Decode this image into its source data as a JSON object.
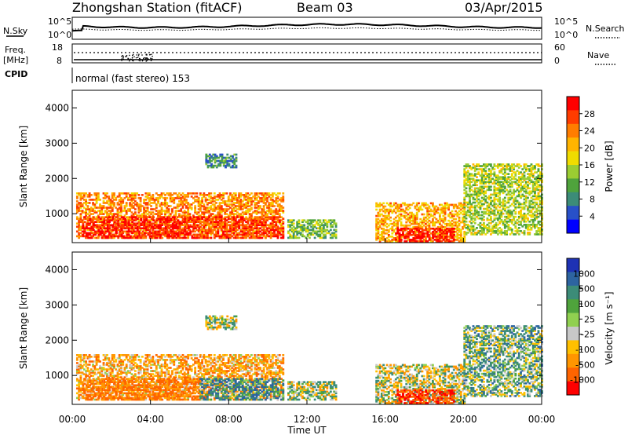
{
  "header": {
    "station": "Zhongshan Station (fitACF)",
    "beam": "Beam 03",
    "date": "03/Apr/2015"
  },
  "noise_panel": {
    "left_label": "N.Sky",
    "left_ticks": [
      "10^5",
      "10^0"
    ],
    "right_label": "N.Search",
    "right_ticks": [
      "10^5",
      "10^0"
    ]
  },
  "freq_panel": {
    "left_label_1": "Freq.",
    "left_label_2": "[MHz]",
    "left_ticks": [
      "18",
      "8"
    ],
    "right_label": "Nave",
    "right_ticks": [
      "60",
      "0"
    ]
  },
  "cpid": {
    "label": "CPID",
    "text": "normal (fast stereo) 153"
  },
  "power_colorbar": {
    "title": "Power [dB]",
    "ticks": [
      "28",
      "24",
      "20",
      "16",
      "12",
      "8",
      "4"
    ],
    "colors": [
      "#ff0000",
      "#ff3c00",
      "#ff7d00",
      "#ffb400",
      "#f0dc00",
      "#9bcd32",
      "#4fa33c",
      "#3c8c78",
      "#2850c8",
      "#0000ff"
    ]
  },
  "velocity_colorbar": {
    "title": "Velocity [m s⁻¹]",
    "ticks": [
      "1000",
      "500",
      "100",
      "25",
      "-25",
      "-100",
      "-500",
      "-1000"
    ],
    "colors": [
      "#1e32b4",
      "#2d64a0",
      "#3c8c78",
      "#4fa33c",
      "#90d050",
      "#c8c8c8",
      "#ffc000",
      "#ff9600",
      "#ff6400",
      "#ff0000"
    ]
  },
  "axes": {
    "ylabel": "Slant Range [km]",
    "xlabel": "Time UT",
    "y_ticks": [
      "1000",
      "2000",
      "3000",
      "4000"
    ],
    "x_ticks": [
      "00:00",
      "04:00",
      "08:00",
      "12:00",
      "16:00",
      "20:00",
      "00:00"
    ]
  },
  "chart_data": {
    "type": "heatmap",
    "x_range_hours": [
      0,
      24
    ],
    "y_range_km": [
      180,
      4500
    ],
    "power_db_range": [
      0,
      30
    ],
    "velocity_range": [
      -1000,
      1000
    ],
    "scatter_regions": [
      {
        "t": [
          0.2,
          10.8
        ],
        "r": [
          300,
          1600
        ],
        "power_db": 22,
        "velocity": -150
      },
      {
        "t": [
          0.5,
          6.5
        ],
        "r": [
          300,
          900
        ],
        "power_db": 28,
        "velocity": -300
      },
      {
        "t": [
          6.5,
          10.8
        ],
        "r": [
          300,
          900
        ],
        "power_db": 26,
        "velocity": 200
      },
      {
        "t": [
          6.8,
          8.4
        ],
        "r": [
          2300,
          2700
        ],
        "power_db": 8,
        "velocity": 50
      },
      {
        "t": [
          11.0,
          13.5
        ],
        "r": [
          300,
          800
        ],
        "power_db": 12,
        "velocity": 20
      },
      {
        "t": [
          15.5,
          20.0
        ],
        "r": [
          200,
          1300
        ],
        "power_db": 20,
        "velocity": 0
      },
      {
        "t": [
          16.5,
          19.5
        ],
        "r": [
          200,
          600
        ],
        "power_db": 28,
        "velocity": -500
      },
      {
        "t": [
          20.0,
          24.0
        ],
        "r": [
          400,
          2400
        ],
        "power_db": 14,
        "velocity": 100
      }
    ]
  }
}
